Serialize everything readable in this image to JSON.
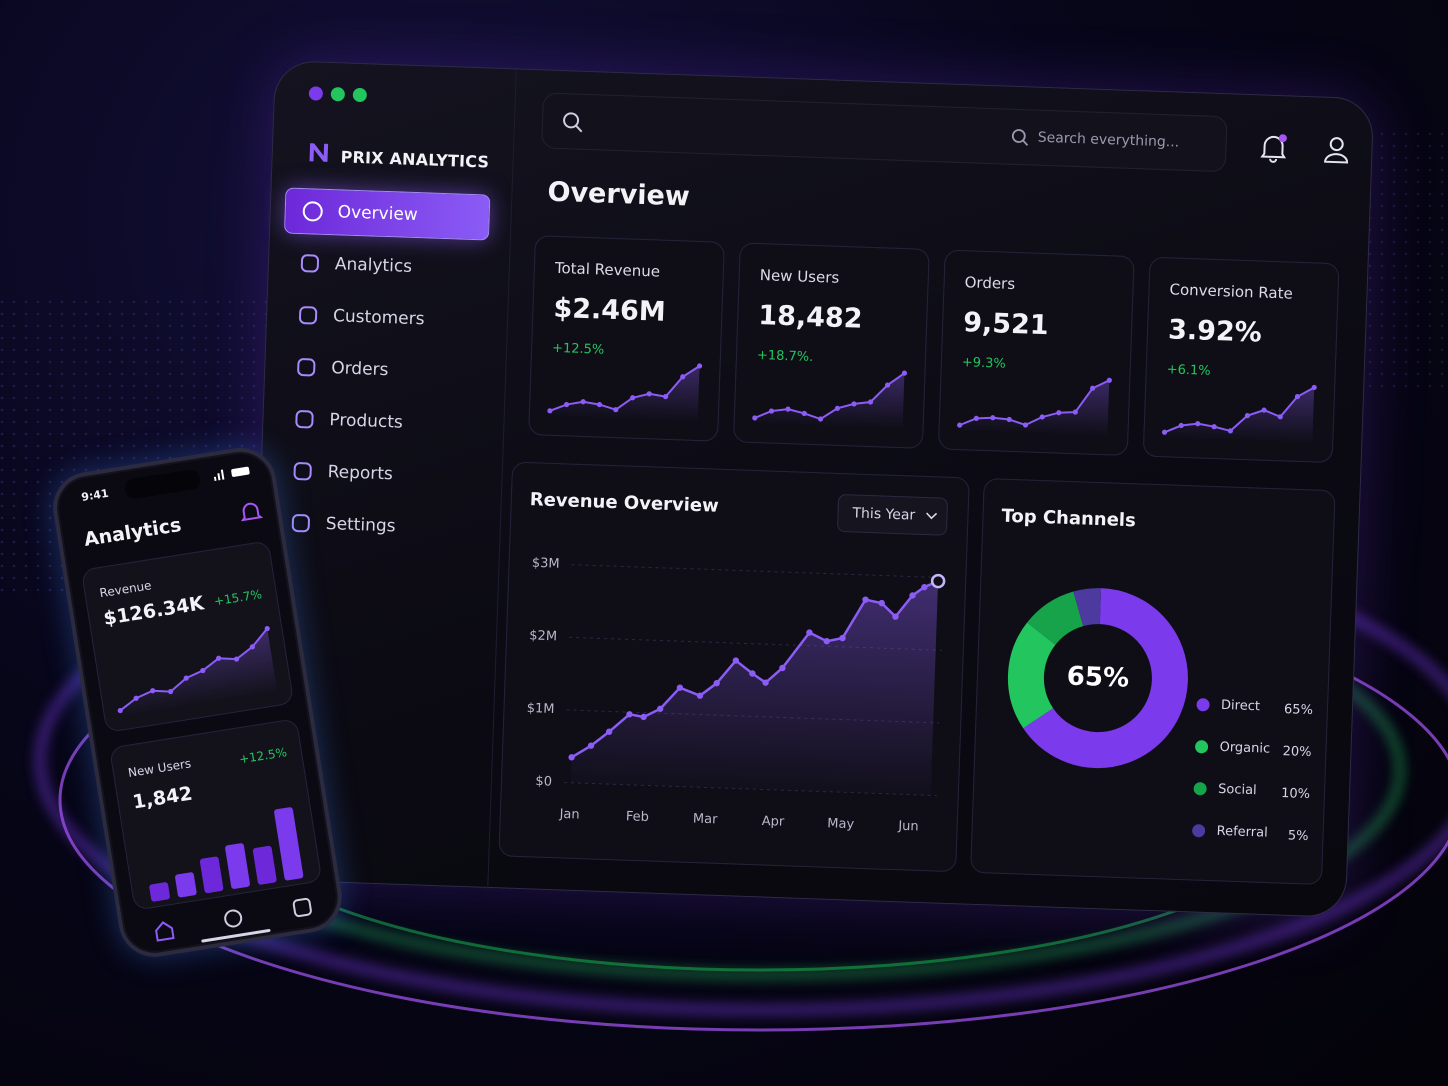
{
  "window": {
    "brand": "PRIX ANALYTICS",
    "search_placeholder": "Search everything...",
    "page_title": "Overview"
  },
  "nav": [
    {
      "label": "Overview",
      "active": true
    },
    {
      "label": "Analytics"
    },
    {
      "label": "Customers"
    },
    {
      "label": "Orders"
    },
    {
      "label": "Products"
    },
    {
      "label": "Reports"
    },
    {
      "label": "Settings"
    }
  ],
  "kpis": [
    {
      "title": "Total Revenue",
      "value": "$2.46M",
      "change": "+12.5%",
      "trend": [
        0,
        6,
        9,
        7,
        3,
        14,
        18,
        16,
        34,
        44
      ]
    },
    {
      "title": "New Users",
      "value": "18,482",
      "change": "+18.7%.",
      "trend": [
        0,
        6,
        8,
        5,
        1,
        10,
        14,
        16,
        30,
        40
      ]
    },
    {
      "title": "Orders",
      "value": "9,521",
      "change": "+9.3%",
      "trend": [
        0,
        6,
        7,
        6,
        2,
        9,
        13,
        14,
        34,
        41
      ]
    },
    {
      "title": "Conversion Rate",
      "value": "3.92%",
      "change": "+6.1%",
      "trend": [
        0,
        6,
        8,
        6,
        3,
        16,
        21,
        16,
        33,
        41
      ]
    }
  ],
  "revenue_chart": {
    "type": "line",
    "title": "Revenue Overview",
    "filter": "This Year",
    "x": [
      0,
      0.28,
      0.54,
      0.83,
      1.04,
      1.28,
      1.56,
      1.86,
      2.1,
      2.37,
      2.62,
      2.82,
      3.06,
      3.44,
      3.7,
      3.93,
      4.25,
      4.49,
      4.7,
      4.94,
      5.11,
      5.31
    ],
    "values": [
      350000,
      520000,
      720000,
      970000,
      940000,
      1060000,
      1360000,
      1260000,
      1440000,
      1760000,
      1590000,
      1470000,
      1680000,
      2180000,
      2070000,
      2120000,
      2660000,
      2620000,
      2440000,
      2740000,
      2860000,
      2950000
    ],
    "xlim": [
      -0.1,
      5.4
    ],
    "xticks": [
      {
        "value": 0,
        "label": "Jan"
      },
      {
        "value": 1,
        "label": "Feb"
      },
      {
        "value": 2,
        "label": "Mar"
      },
      {
        "value": 3,
        "label": "Apr"
      },
      {
        "value": 4,
        "label": "May"
      },
      {
        "value": 5,
        "label": "Jun"
      }
    ],
    "ylim": [
      0,
      3000000
    ],
    "yticks": [
      {
        "value": 0,
        "label": "$0"
      },
      {
        "value": 1000000,
        "label": "$1M"
      },
      {
        "value": 2000000,
        "label": "$2M"
      },
      {
        "value": 3000000,
        "label": "$3M"
      }
    ],
    "color": "#8b5cf6",
    "grid": true
  },
  "channels_chart": {
    "type": "pie",
    "title": "Top Channels",
    "center_label": "65%",
    "categories": [
      "Direct",
      "Organic",
      "Social",
      "Referral"
    ],
    "values": [
      65,
      20,
      10,
      5
    ],
    "value_labels": [
      "65%",
      "20%",
      "10%",
      "5%"
    ],
    "colors": [
      "#7c3aed",
      "#22c55e",
      "#16a34a",
      "#4c3a9e"
    ]
  },
  "phone": {
    "time": "9:41",
    "title": "Analytics",
    "revenue": {
      "title": "Revenue",
      "value": "$126.34K",
      "change": "+15.7%",
      "trend": [
        0,
        8,
        12,
        9,
        18,
        22,
        30,
        27,
        35,
        48
      ]
    },
    "new_users": {
      "title": "New Users",
      "value": "1,842",
      "change": "+12.5%",
      "bars": [
        15,
        20,
        30,
        38,
        32,
        62
      ]
    }
  }
}
